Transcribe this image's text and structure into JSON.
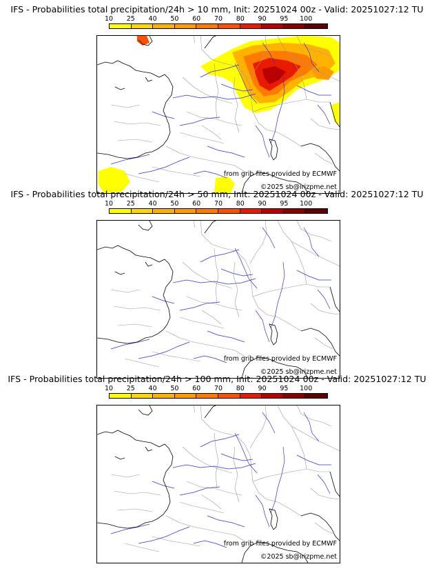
{
  "panels": [
    {
      "title": "IFS - Probabilities total precipitation/24h > 10 mm, Init: 20251024 00z - Valid: 20251027:12 TU",
      "threshold": "10 mm",
      "has_precip": true
    },
    {
      "title": "IFS - Probabilities total precipitation/24h > 50 mm, Init: 20251024 00z - Valid: 20251027:12 TU",
      "threshold": "50 mm",
      "has_precip": false
    },
    {
      "title": "IFS - Probabilities total precipitation/24h > 100 mm, Init: 20251024 00z - Valid: 20251027:12 TU",
      "threshold": "100 mm",
      "has_precip": false
    }
  ],
  "scale": {
    "labels": [
      "10",
      "25",
      "40",
      "50",
      "60",
      "70",
      "80",
      "90",
      "95",
      "100"
    ],
    "colors": [
      "#ffff00",
      "#ffd700",
      "#ffb300",
      "#ff9a00",
      "#ff7a00",
      "#ff5000",
      "#e81a00",
      "#b80000",
      "#8a0000",
      "#5c0000"
    ]
  },
  "credits": {
    "source": "from grib files provided by ECMWF",
    "copyright": "©2025 sb@irizpme.net"
  },
  "map_colors": {
    "rivers": "#3333cc",
    "borders": "#999999",
    "coast": "#000000"
  }
}
